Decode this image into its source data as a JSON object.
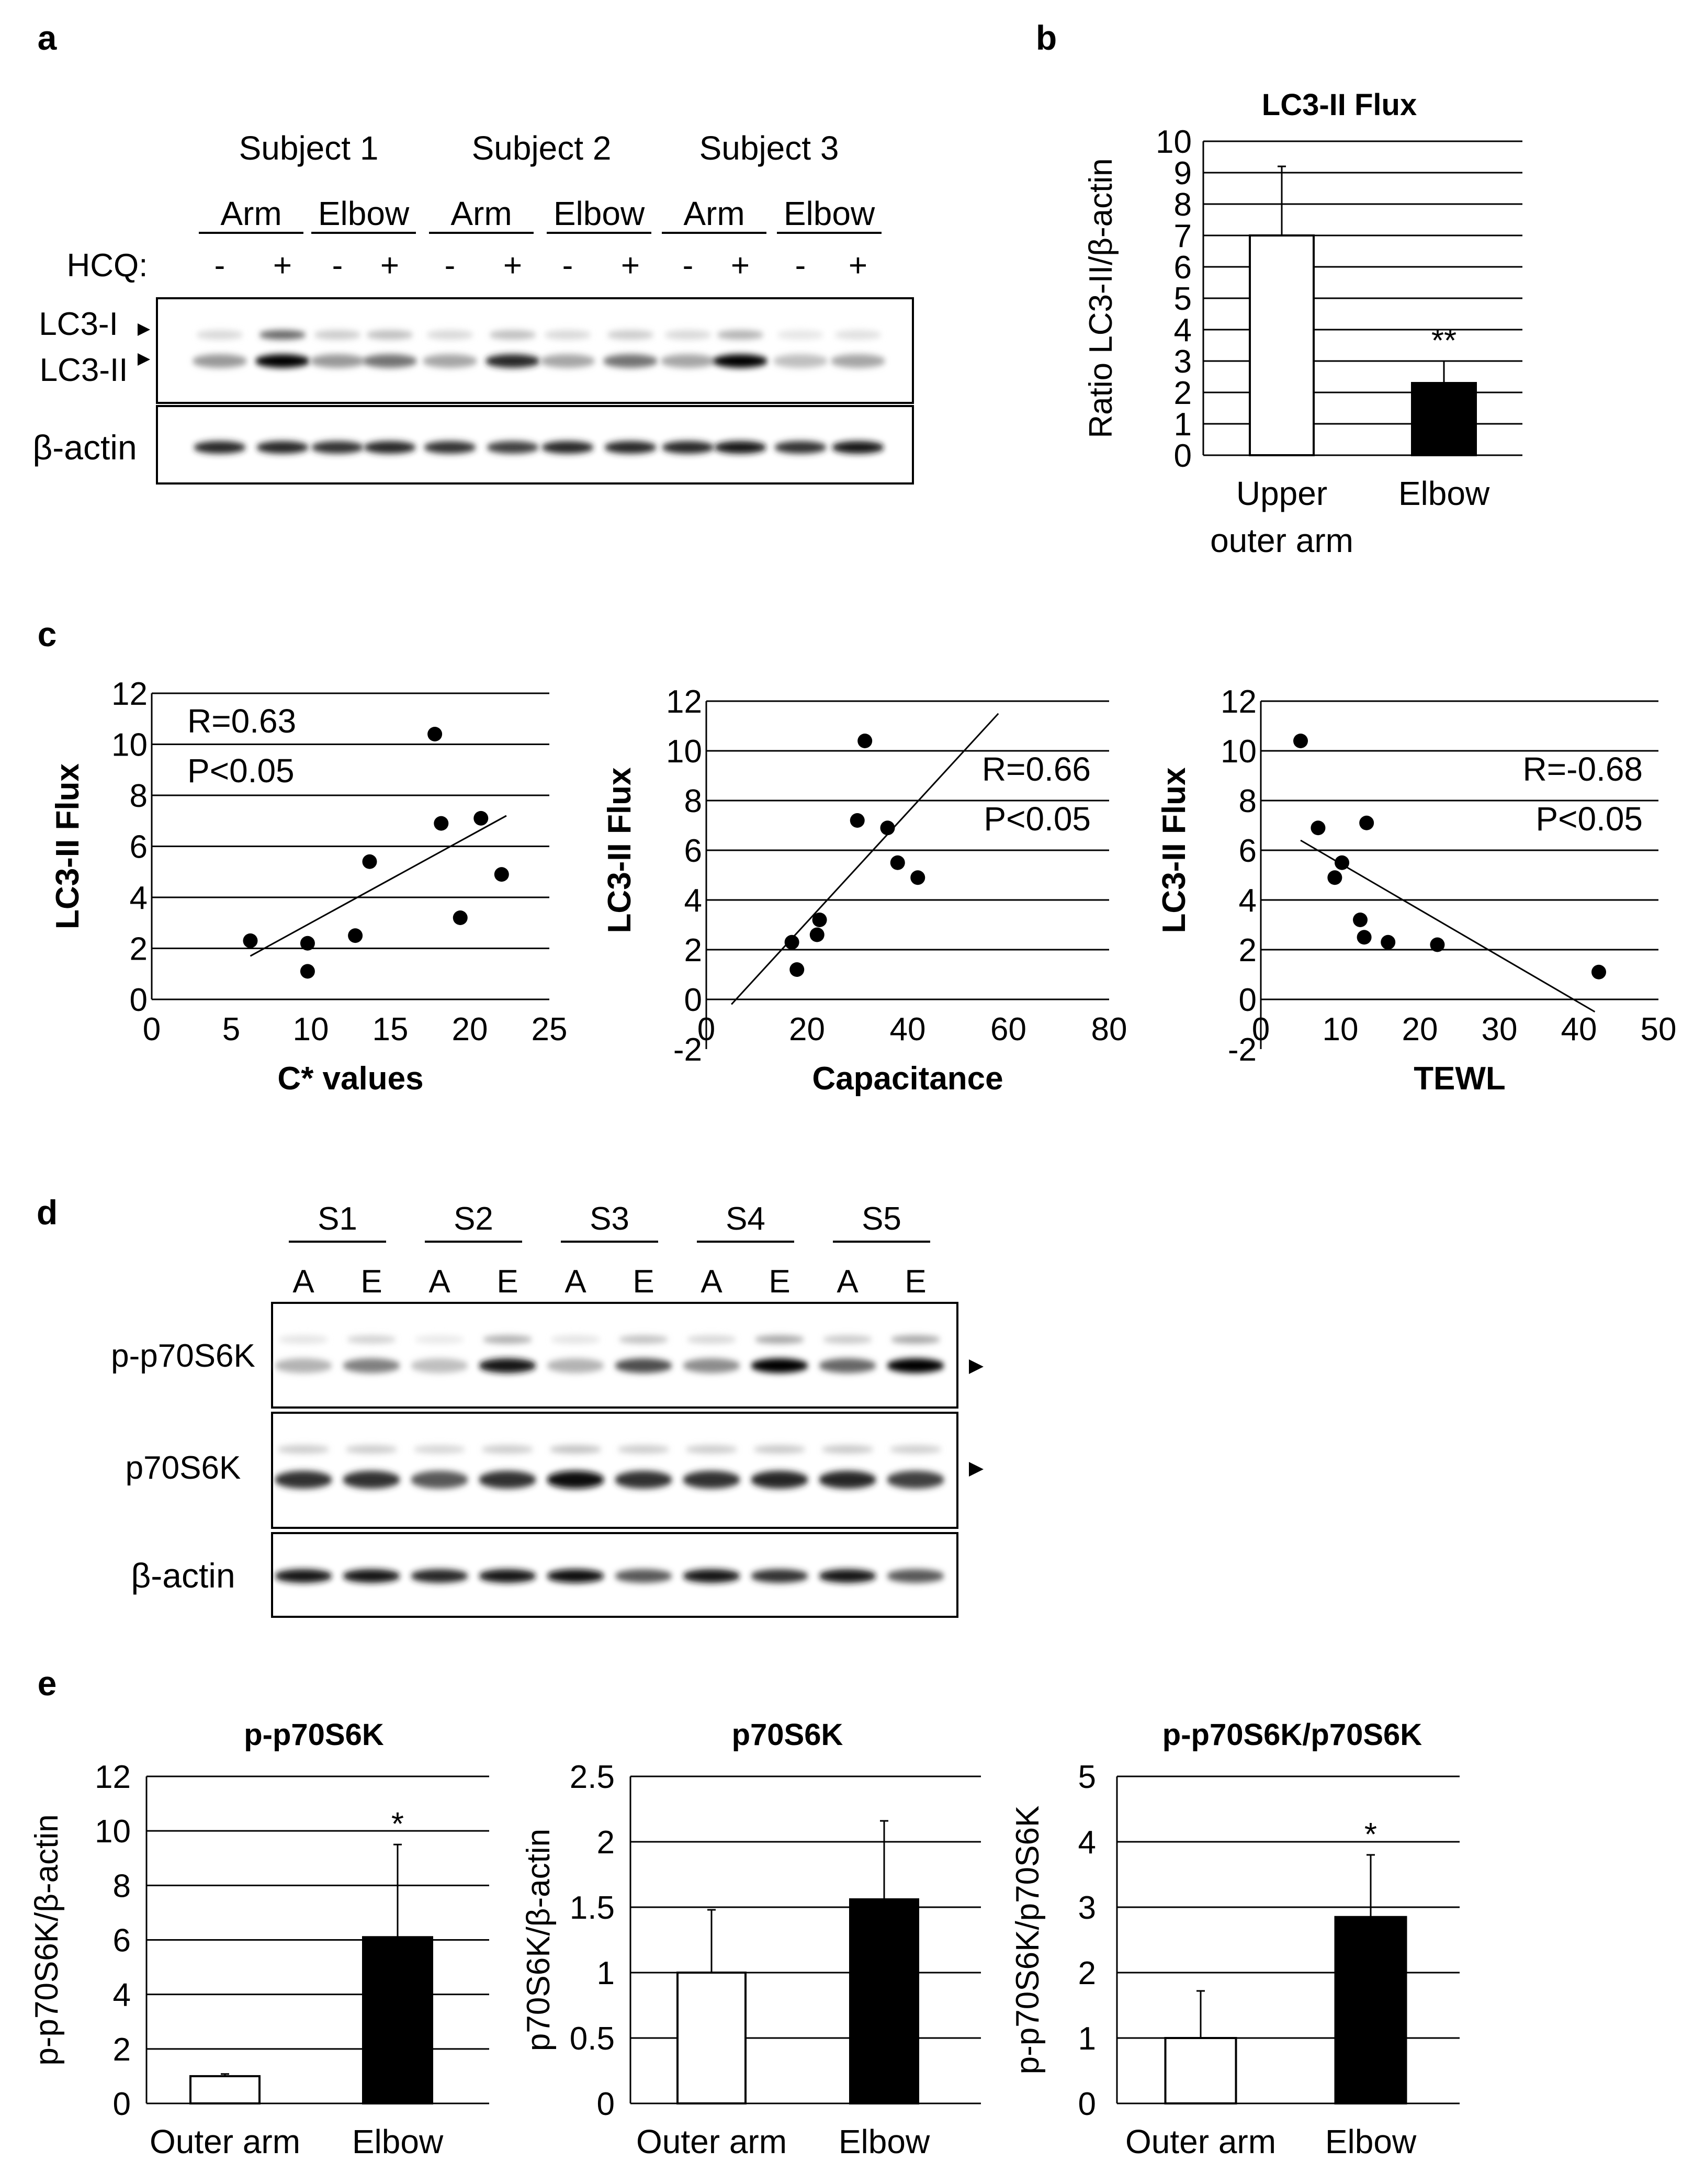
{
  "panel_labels": {
    "a": "a",
    "b": "b",
    "c": "c",
    "d": "d",
    "e": "e"
  },
  "panel_a": {
    "subjects": [
      "Subject 1",
      "Subject 2",
      "Subject 3"
    ],
    "sites": [
      "Arm",
      "Elbow",
      "Arm",
      "Elbow",
      "Arm",
      "Elbow"
    ],
    "treatment_label": "HCQ:",
    "treatments": [
      "-",
      "+",
      "-",
      "+",
      "-",
      "+",
      "-",
      "+",
      "-",
      "+",
      "-",
      "+"
    ],
    "rows": [
      "LC3-I",
      "LC3-II",
      "β-actin"
    ],
    "lc3i_intensity": [
      0.15,
      0.6,
      0.2,
      0.25,
      0.15,
      0.25,
      0.15,
      0.2,
      0.15,
      0.3,
      0.1,
      0.12
    ],
    "lc3ii_intensity": [
      0.4,
      1.0,
      0.4,
      0.55,
      0.35,
      0.85,
      0.35,
      0.55,
      0.35,
      1.0,
      0.25,
      0.35
    ],
    "actin_intensity": [
      0.85,
      0.85,
      0.8,
      0.85,
      0.8,
      0.75,
      0.85,
      0.85,
      0.85,
      0.9,
      0.8,
      0.9
    ]
  },
  "panel_d": {
    "subjects": [
      "S1",
      "S2",
      "S3",
      "S4",
      "S5"
    ],
    "lanes": [
      "A",
      "E",
      "A",
      "E",
      "A",
      "E",
      "A",
      "E",
      "A",
      "E"
    ],
    "rows": [
      "p-p70S6K",
      "p70S6K",
      "β-actin"
    ],
    "pp70_intensity": [
      0.3,
      0.5,
      0.25,
      0.9,
      0.3,
      0.7,
      0.45,
      1.0,
      0.6,
      1.0
    ],
    "p70_intensity": [
      0.8,
      0.8,
      0.65,
      0.8,
      0.95,
      0.8,
      0.8,
      0.85,
      0.85,
      0.75
    ],
    "actin_intensity": [
      0.9,
      0.9,
      0.85,
      0.9,
      0.95,
      0.65,
      0.9,
      0.8,
      0.9,
      0.65
    ]
  },
  "chart_data": [
    {
      "id": "b",
      "type": "bar",
      "title": "LC3-II Flux",
      "ylabel": "Ratio LC3-II/β-actin",
      "categories": [
        "Upper outer arm",
        "Elbow"
      ],
      "category_lines": [
        [
          "Upper",
          "outer arm"
        ],
        [
          "Elbow"
        ]
      ],
      "values": [
        7.0,
        2.3
      ],
      "errors": [
        2.2,
        0.7
      ],
      "fills": [
        "#ffffff",
        "#000000"
      ],
      "significance": [
        "",
        "**"
      ],
      "ylim": [
        0,
        10
      ],
      "yticks": [
        "0",
        "1",
        "2",
        "3",
        "4",
        "5",
        "6",
        "7",
        "8",
        "9",
        "10"
      ],
      "grid": true
    },
    {
      "id": "c1",
      "type": "scatter",
      "xlabel": "C* values",
      "ylabel": "LC3-II Flux",
      "x": [
        6.2,
        9.8,
        9.8,
        12.8,
        13.7,
        17.8,
        18.2,
        19.4,
        20.7,
        22
      ],
      "y": [
        2.3,
        2.2,
        1.1,
        2.5,
        5.4,
        10.4,
        6.9,
        3.2,
        7.1,
        4.9
      ],
      "fit": [
        [
          6.2,
          1.7
        ],
        [
          22.3,
          7.2
        ]
      ],
      "annotations": [
        "R=0.63",
        "P<0.05"
      ],
      "xlim": [
        0,
        25
      ],
      "ylim": [
        0,
        12
      ],
      "xticks": [
        "0",
        "5",
        "10",
        "15",
        "20",
        "25"
      ],
      "yticks": [
        "0",
        "2",
        "4",
        "6",
        "8",
        "10",
        "12"
      ],
      "grid": true
    },
    {
      "id": "c2",
      "type": "scatter",
      "xlabel": "Capacitance",
      "ylabel": "LC3-II Flux",
      "x": [
        17,
        18,
        22,
        22.5,
        30,
        31.5,
        36,
        38,
        42
      ],
      "y": [
        2.3,
        1.2,
        2.6,
        3.2,
        7.2,
        10.4,
        6.9,
        5.5,
        4.9
      ],
      "fit": [
        [
          5,
          -0.2
        ],
        [
          58,
          11.5
        ]
      ],
      "annotations": [
        "R=0.66",
        "P<0.05"
      ],
      "xlim": [
        0,
        80
      ],
      "ylim": [
        -2,
        12
      ],
      "xticks": [
        "0",
        "20",
        "40",
        "60",
        "80"
      ],
      "yticks": [
        "-2",
        "0",
        "2",
        "4",
        "6",
        "8",
        "10",
        "12"
      ],
      "grid": true
    },
    {
      "id": "c3",
      "type": "scatter",
      "xlabel": "TEWL",
      "ylabel": "LC3-II Flux",
      "x": [
        5,
        7.2,
        9.3,
        10.2,
        12.5,
        13,
        13.3,
        16,
        22.2,
        42.5
      ],
      "y": [
        10.4,
        6.9,
        4.9,
        5.5,
        3.2,
        2.5,
        7.1,
        2.3,
        2.2,
        1.1
      ],
      "fit": [
        [
          5,
          6.4
        ],
        [
          42,
          -0.5
        ]
      ],
      "annotations": [
        "R=-0.68",
        "P<0.05"
      ],
      "xlim": [
        0,
        50
      ],
      "ylim": [
        -2,
        12
      ],
      "xticks": [
        "0",
        "10",
        "20",
        "30",
        "40",
        "50"
      ],
      "yticks": [
        "-2",
        "0",
        "2",
        "4",
        "6",
        "8",
        "10",
        "12"
      ],
      "grid": true
    },
    {
      "id": "e1",
      "type": "bar",
      "title": "p-p70S6K",
      "ylabel": "p-p70S6K/β-actin",
      "categories": [
        "Outer arm",
        "Elbow"
      ],
      "values": [
        1.0,
        6.1
      ],
      "errors": [
        0.08,
        3.4
      ],
      "fills": [
        "#ffffff",
        "#000000"
      ],
      "significance": [
        "",
        "*"
      ],
      "ylim": [
        0,
        12
      ],
      "yticks": [
        "0",
        "2",
        "4",
        "6",
        "8",
        "10",
        "12"
      ],
      "grid": true
    },
    {
      "id": "e2",
      "type": "bar",
      "title": "p70S6K",
      "ylabel": "p70S6K/β-actin",
      "categories": [
        "Outer arm",
        "Elbow"
      ],
      "values": [
        1.0,
        1.56
      ],
      "errors": [
        0.48,
        0.6
      ],
      "fills": [
        "#ffffff",
        "#000000"
      ],
      "significance": [
        "",
        ""
      ],
      "ylim": [
        0,
        2.5
      ],
      "yticks": [
        "0",
        "0.5",
        "1",
        "1.5",
        "2",
        "2.5"
      ],
      "grid": true
    },
    {
      "id": "e3",
      "type": "bar",
      "title": "p-p70S6K/p70S6K",
      "ylabel": "p-p70S6K/p70S6K",
      "categories": [
        "Outer arm",
        "Elbow"
      ],
      "values": [
        1.0,
        2.85
      ],
      "errors": [
        0.72,
        0.95
      ],
      "fills": [
        "#ffffff",
        "#000000"
      ],
      "significance": [
        "",
        "*"
      ],
      "ylim": [
        0,
        5
      ],
      "yticks": [
        "0",
        "1",
        "2",
        "3",
        "4",
        "5"
      ],
      "grid": true
    }
  ]
}
